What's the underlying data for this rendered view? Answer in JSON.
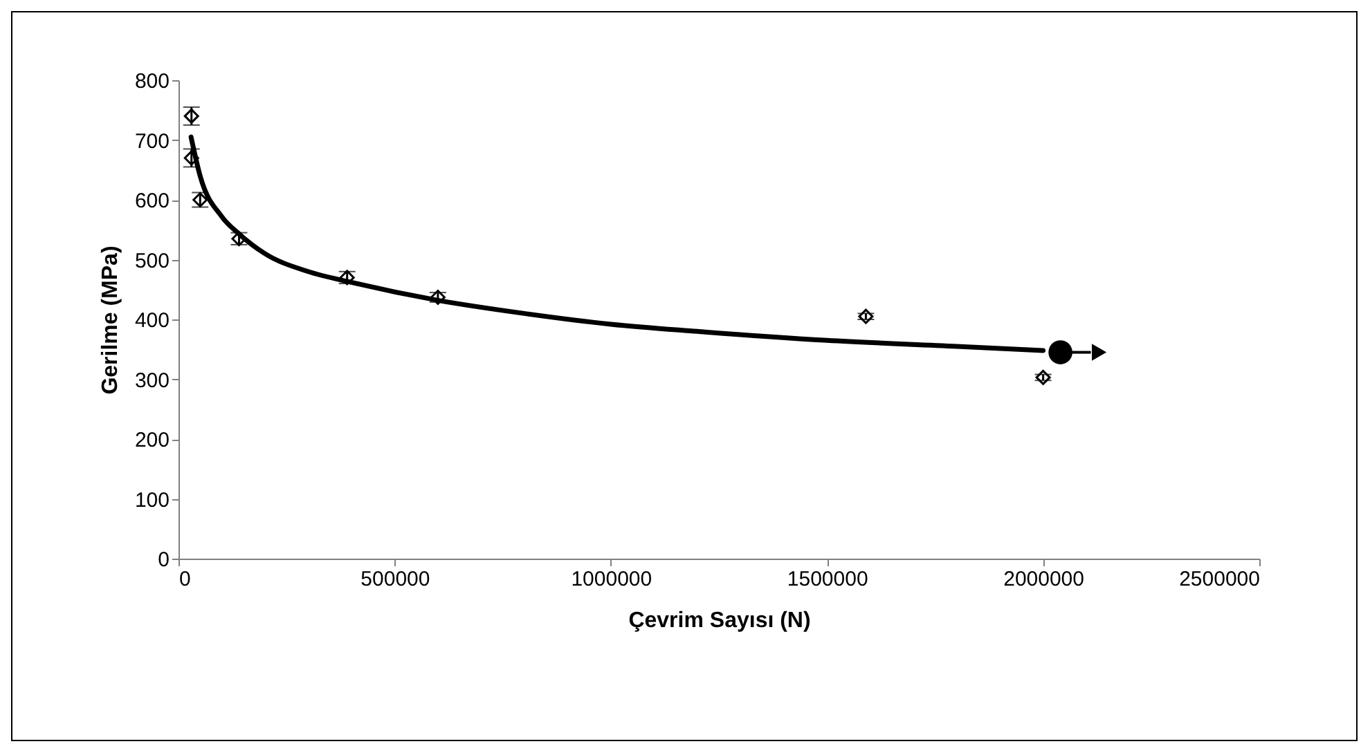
{
  "chart_data": {
    "type": "scatter",
    "xlabel": "Çevrim Sayısı (N)",
    "ylabel": "Gerilme (MPa)",
    "xlim": [
      0,
      2500000
    ],
    "xticks": [
      0,
      500000,
      1000000,
      1500000,
      2000000,
      2500000
    ],
    "ylim": [
      0,
      800
    ],
    "yticks": [
      0,
      100,
      200,
      300,
      400,
      500,
      600,
      700,
      800
    ],
    "grid": false,
    "series": [
      {
        "marker": "diamond",
        "color": "#000000",
        "x": [
          30000,
          30000,
          50000,
          140000,
          390000,
          600000,
          1590000,
          2000000
        ],
        "values": [
          740,
          670,
          600,
          535,
          470,
          437,
          405,
          303
        ],
        "errors": [
          15,
          15,
          12,
          10,
          10,
          8,
          5,
          5
        ]
      },
      {
        "type": "line",
        "line_style": "solid",
        "color": "#000000",
        "x": [
          29000,
          50000,
          100000,
          140000,
          200000,
          300000,
          400000,
          600000,
          800000,
          1000000,
          1200000,
          1500000,
          1800000,
          2000000
        ],
        "values": [
          705,
          640,
          572,
          543,
          510,
          480,
          462,
          432,
          410,
          392,
          380,
          365,
          355,
          348
        ]
      },
      {
        "type": "scatter",
        "marker": "circle",
        "color": "#000000",
        "x": [
          2040000
        ],
        "values": [
          345
        ]
      }
    ]
  }
}
